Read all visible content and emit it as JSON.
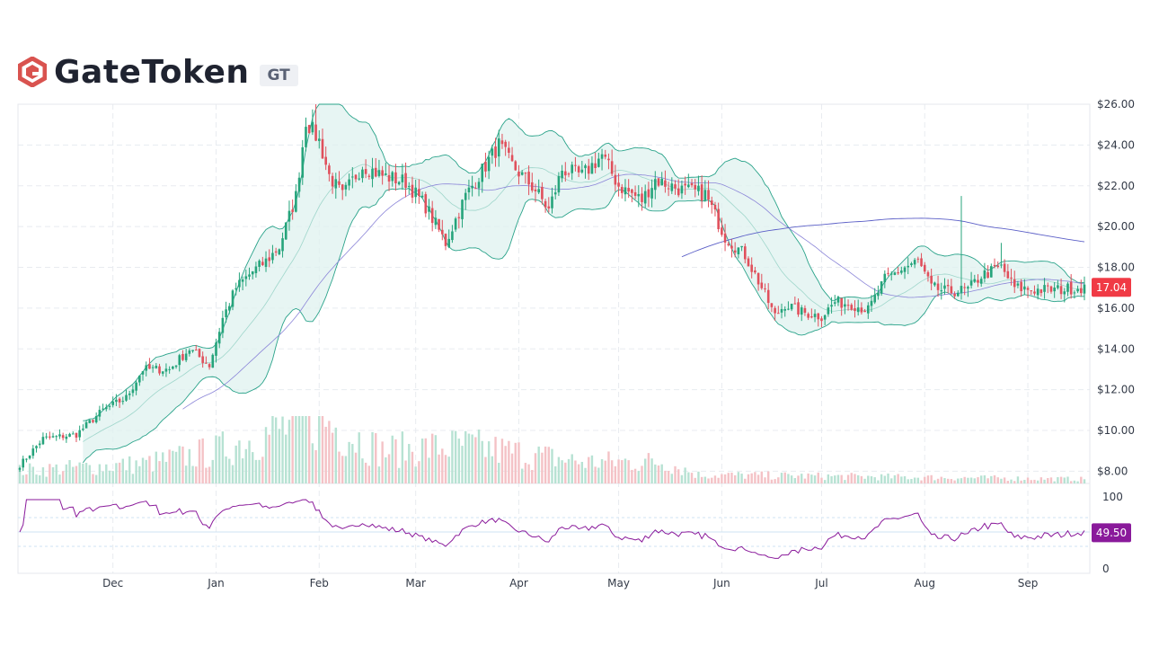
{
  "header": {
    "title": "GateToken",
    "ticker": "GT"
  },
  "colors": {
    "up": "#26a47b",
    "down": "#e0505c",
    "band_line": "#2aa38a",
    "band_fill": "#dff2ef",
    "ma_long": "#5b5fc7",
    "ma_mid": "#8b85d8",
    "rsi": "#8a1a9b",
    "price_tag": "#f03a45",
    "rsi_tag": "#8a1a9b"
  },
  "icons": {
    "logo": "gatetoken-logo-icon"
  },
  "chart_data": {
    "type": "candlestick",
    "price_axis": {
      "min": 7.4,
      "max": 26.0,
      "ticks": [
        8,
        10,
        12,
        14,
        16,
        18,
        20,
        22,
        24,
        26
      ],
      "tick_labels": [
        "$8.00",
        "$10.00",
        "$12.00",
        "$14.00",
        "$16.00",
        "$18.00",
        "$20.00",
        "$22.00",
        "$24.00",
        "$26.00"
      ]
    },
    "time_axis": {
      "start": "2023-11-03",
      "end": "2024-09-18",
      "labels": [
        "Dec",
        "Jan",
        "Feb",
        "Mar",
        "Apr",
        "May",
        "Jun",
        "Jul",
        "Aug",
        "Sep"
      ],
      "label_dates": [
        "2023-12-01",
        "2024-01-01",
        "2024-02-01",
        "2024-03-01",
        "2024-04-01",
        "2024-05-01",
        "2024-06-01",
        "2024-07-01",
        "2024-08-01",
        "2024-09-01"
      ]
    },
    "close_keypoints": [
      [
        "2023-11-03",
        8.3
      ],
      [
        "2023-11-10",
        9.6
      ],
      [
        "2023-11-20",
        9.8
      ],
      [
        "2023-11-28",
        11.0
      ],
      [
        "2023-12-05",
        11.6
      ],
      [
        "2023-12-10",
        13.0
      ],
      [
        "2023-12-18",
        13.0
      ],
      [
        "2023-12-24",
        14.0
      ],
      [
        "2023-12-30",
        13.2
      ],
      [
        "2024-01-03",
        15.5
      ],
      [
        "2024-01-07",
        17.0
      ],
      [
        "2024-01-12",
        17.8
      ],
      [
        "2024-01-16",
        18.3
      ],
      [
        "2024-01-20",
        19.0
      ],
      [
        "2024-01-25",
        21.5
      ],
      [
        "2024-01-28",
        25.2
      ],
      [
        "2024-02-01",
        24.2
      ],
      [
        "2024-02-04",
        22.5
      ],
      [
        "2024-02-08",
        21.5
      ],
      [
        "2024-02-14",
        23.0
      ],
      [
        "2024-02-20",
        22.5
      ],
      [
        "2024-02-27",
        22.2
      ],
      [
        "2024-03-04",
        21.0
      ],
      [
        "2024-03-10",
        19.2
      ],
      [
        "2024-03-16",
        21.5
      ],
      [
        "2024-03-22",
        23.0
      ],
      [
        "2024-03-26",
        24.0
      ],
      [
        "2024-03-30",
        23.0
      ],
      [
        "2024-04-06",
        21.8
      ],
      [
        "2024-04-10",
        20.8
      ],
      [
        "2024-04-14",
        22.8
      ],
      [
        "2024-04-20",
        22.5
      ],
      [
        "2024-04-26",
        23.5
      ],
      [
        "2024-05-01",
        22.0
      ],
      [
        "2024-05-08",
        21.3
      ],
      [
        "2024-05-12",
        22.3
      ],
      [
        "2024-05-20",
        21.8
      ],
      [
        "2024-05-27",
        21.6
      ],
      [
        "2024-06-02",
        19.5
      ],
      [
        "2024-06-08",
        18.6
      ],
      [
        "2024-06-13",
        17.0
      ],
      [
        "2024-06-17",
        15.6
      ],
      [
        "2024-06-20",
        16.2
      ],
      [
        "2024-06-25",
        15.8
      ],
      [
        "2024-07-01",
        15.6
      ],
      [
        "2024-07-05",
        16.3
      ],
      [
        "2024-07-10",
        16.2
      ],
      [
        "2024-07-15",
        15.9
      ],
      [
        "2024-07-20",
        17.4
      ],
      [
        "2024-07-26",
        18.0
      ],
      [
        "2024-07-30",
        18.3
      ],
      [
        "2024-08-03",
        17.0
      ],
      [
        "2024-08-08",
        16.8
      ],
      [
        "2024-08-14",
        16.9
      ],
      [
        "2024-08-18",
        17.6
      ],
      [
        "2024-08-24",
        18.0
      ],
      [
        "2024-08-28",
        17.0
      ],
      [
        "2024-09-03",
        16.9
      ],
      [
        "2024-09-10",
        16.9
      ],
      [
        "2024-09-18",
        17.04
      ]
    ],
    "spikes": [
      [
        "2024-08-12",
        21.5
      ],
      [
        "2024-01-31",
        26.0
      ],
      [
        "2024-08-24",
        19.2
      ]
    ],
    "volume_keypoints": [
      [
        "2023-11-03",
        0.12
      ],
      [
        "2023-12-10",
        0.18
      ],
      [
        "2024-01-01",
        0.3
      ],
      [
        "2024-01-20",
        0.5
      ],
      [
        "2024-02-01",
        0.6
      ],
      [
        "2024-02-20",
        0.3
      ],
      [
        "2024-03-15",
        0.35
      ],
      [
        "2024-04-01",
        0.28
      ],
      [
        "2024-04-20",
        0.2
      ],
      [
        "2024-05-15",
        0.2
      ],
      [
        "2024-05-25",
        0.08
      ],
      [
        "2024-09-18",
        0.04
      ]
    ],
    "rsi_axis": {
      "min": 0,
      "max": 100,
      "labels": [
        "100",
        "0"
      ],
      "guides": [
        70,
        50,
        30
      ]
    },
    "last_price_tag": "17.04",
    "last_rsi_tag": "49.50"
  }
}
